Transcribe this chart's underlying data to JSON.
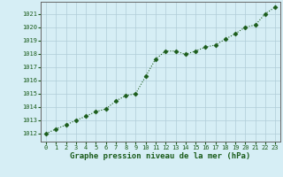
{
  "x": [
    0,
    1,
    2,
    3,
    4,
    5,
    6,
    7,
    8,
    9,
    10,
    11,
    12,
    13,
    14,
    15,
    16,
    17,
    18,
    19,
    20,
    21,
    22,
    23
  ],
  "y": [
    1012.0,
    1012.35,
    1012.65,
    1013.0,
    1013.3,
    1013.65,
    1013.85,
    1014.45,
    1014.85,
    1015.0,
    1016.3,
    1017.6,
    1018.2,
    1018.2,
    1017.95,
    1018.2,
    1018.5,
    1018.65,
    1019.1,
    1019.5,
    1020.0,
    1020.15,
    1021.0,
    1021.5
  ],
  "line_color": "#1a5c1a",
  "marker": "D",
  "marker_size": 2.5,
  "bg_color": "#d6eef5",
  "grid_color": "#b0ccd8",
  "xlabel": "Graphe pression niveau de la mer (hPa)",
  "xlabel_color": "#1a5c1a",
  "ylabel_ticks": [
    1012,
    1013,
    1014,
    1015,
    1016,
    1017,
    1018,
    1019,
    1020,
    1021
  ],
  "ylim": [
    1011.4,
    1021.9
  ],
  "xlim": [
    -0.5,
    23.5
  ],
  "tick_color": "#1a5c1a",
  "tick_fontsize": 5,
  "xlabel_fontsize": 6.5,
  "linewidth": 0.8
}
